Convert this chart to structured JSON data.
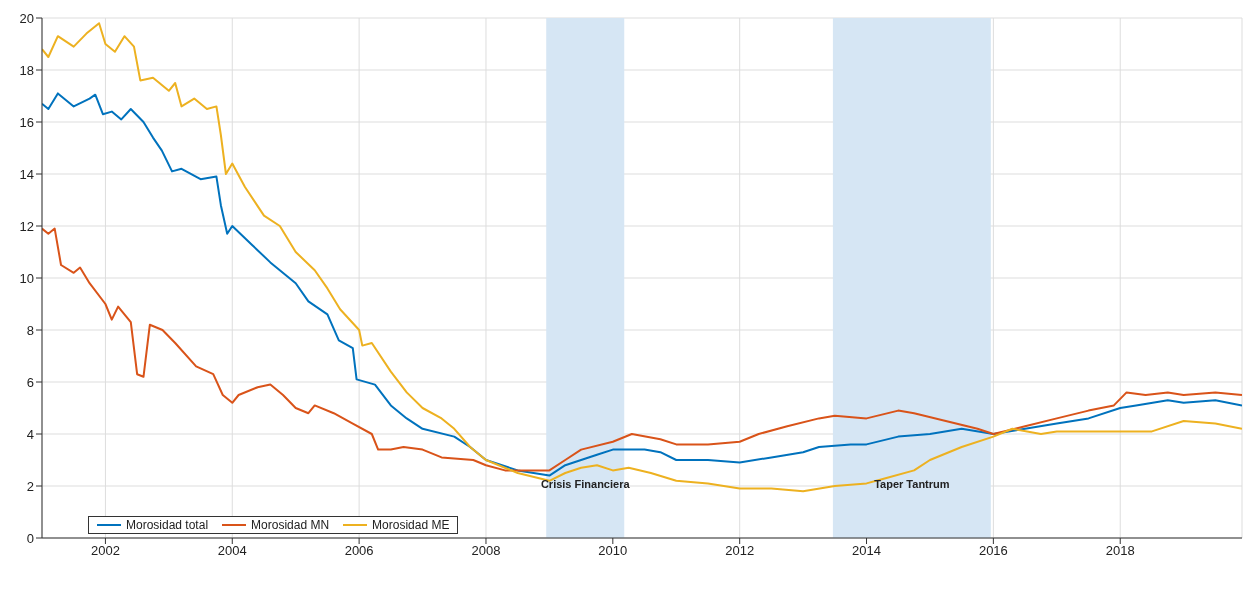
{
  "chart_data": {
    "type": "line",
    "xlim": [
      2001,
      2019.92
    ],
    "xticks": [
      2002,
      2004,
      2006,
      2008,
      2010,
      2012,
      2014,
      2016,
      2018
    ],
    "ylim": [
      0,
      20
    ],
    "yticks": [
      0,
      2,
      4,
      6,
      8,
      10,
      12,
      14,
      16,
      18,
      20
    ],
    "grid": true,
    "legend": "bottom left",
    "bands": [
      {
        "axis": "x",
        "from": 2008.95,
        "to": 2010.18,
        "label": "Crisis Financiera",
        "color": "#d6e6f4"
      },
      {
        "axis": "x",
        "from": 2013.47,
        "to": 2015.96,
        "label": "Taper Tantrum",
        "color": "#d6e6f4"
      }
    ],
    "series": [
      {
        "name": "Morosidad total",
        "color": "#0072bd",
        "x": [
          2001,
          2001.1,
          2001.25,
          2001.5,
          2001.75,
          2001.84,
          2001.96,
          2002.1,
          2002.25,
          2002.4,
          2002.6,
          2002.75,
          2002.89,
          2003.05,
          2003.2,
          2003.5,
          2003.75,
          2003.82,
          2003.92,
          2004,
          2004.3,
          2004.6,
          2005,
          2005.2,
          2005.5,
          2005.68,
          2005.9,
          2005.96,
          2006.25,
          2006.5,
          2006.75,
          2007,
          2007.5,
          2007.75,
          2008,
          2008.5,
          2009,
          2009.25,
          2009.5,
          2009.75,
          2010,
          2010.5,
          2010.75,
          2011,
          2011.5,
          2012,
          2012.5,
          2013,
          2013.25,
          2013.75,
          2014,
          2014.5,
          2015,
          2015.5,
          2016,
          2016.5,
          2017,
          2017.5,
          2018,
          2018.25,
          2018.75,
          2019,
          2019.5,
          2019.92
        ],
        "values": [
          16.7,
          16.5,
          17.1,
          16.6,
          16.9,
          17.05,
          16.3,
          16.4,
          16.1,
          16.5,
          16.0,
          15.4,
          14.9,
          14.1,
          14.2,
          13.8,
          13.9,
          12.8,
          11.7,
          12.0,
          11.3,
          10.6,
          9.8,
          9.1,
          8.6,
          7.6,
          7.3,
          6.1,
          5.9,
          5.1,
          4.6,
          4.2,
          3.9,
          3.5,
          3.0,
          2.6,
          2.4,
          2.8,
          3.0,
          3.2,
          3.4,
          3.4,
          3.3,
          3.0,
          3.0,
          2.9,
          3.1,
          3.3,
          3.5,
          3.6,
          3.6,
          3.9,
          4.0,
          4.2,
          4.0,
          4.2,
          4.4,
          4.6,
          5.0,
          5.1,
          5.3,
          5.2,
          5.3,
          5.1
        ]
      },
      {
        "name": "Morosidad MN",
        "color": "#d95319",
        "x": [
          2001,
          2001.1,
          2001.2,
          2001.3,
          2001.5,
          2001.6,
          2001.75,
          2002,
          2002.1,
          2002.2,
          2002.4,
          2002.5,
          2002.6,
          2002.7,
          2002.9,
          2003.1,
          2003.43,
          2003.7,
          2003.85,
          2004,
          2004.1,
          2004.4,
          2004.6,
          2004.8,
          2005,
          2005.2,
          2005.3,
          2005.6,
          2005.9,
          2006.2,
          2006.3,
          2006.5,
          2006.7,
          2007,
          2007.3,
          2007.8,
          2008,
          2008.3,
          2008.8,
          2009,
          2009.25,
          2009.5,
          2010,
          2010.3,
          2010.75,
          2011,
          2011.5,
          2012,
          2012.3,
          2012.75,
          2013.25,
          2013.5,
          2014,
          2014.5,
          2014.75,
          2015.25,
          2015.75,
          2016,
          2016.5,
          2017,
          2017.5,
          2017.9,
          2018.1,
          2018.4,
          2018.75,
          2019,
          2019.5,
          2019.92
        ],
        "values": [
          11.9,
          11.7,
          11.9,
          10.5,
          10.2,
          10.4,
          9.8,
          9.0,
          8.4,
          8.9,
          8.3,
          6.3,
          6.2,
          8.2,
          8.0,
          7.5,
          6.6,
          6.3,
          5.5,
          5.2,
          5.5,
          5.8,
          5.9,
          5.5,
          5.0,
          4.8,
          5.1,
          4.8,
          4.4,
          4.0,
          3.4,
          3.4,
          3.5,
          3.4,
          3.1,
          3.0,
          2.8,
          2.6,
          2.6,
          2.6,
          3.0,
          3.4,
          3.7,
          4.0,
          3.8,
          3.6,
          3.6,
          3.7,
          4.0,
          4.3,
          4.6,
          4.7,
          4.6,
          4.9,
          4.8,
          4.5,
          4.2,
          4.0,
          4.3,
          4.6,
          4.9,
          5.1,
          5.6,
          5.5,
          5.6,
          5.5,
          5.6,
          5.5
        ]
      },
      {
        "name": "Morosidad ME",
        "color": "#edb120",
        "x": [
          2001,
          2001.1,
          2001.25,
          2001.5,
          2001.7,
          2001.9,
          2002,
          2002.15,
          2002.3,
          2002.45,
          2002.55,
          2002.75,
          2003,
          2003.1,
          2003.2,
          2003.4,
          2003.6,
          2003.75,
          2003.82,
          2003.9,
          2004,
          2004.2,
          2004.5,
          2004.75,
          2005,
          2005.3,
          2005.5,
          2005.7,
          2006,
          2006.05,
          2006.2,
          2006.5,
          2006.75,
          2007,
          2007.3,
          2007.5,
          2007.75,
          2008,
          2008.5,
          2009,
          2009.25,
          2009.5,
          2009.75,
          2010,
          2010.25,
          2010.6,
          2011,
          2011.5,
          2012,
          2012.5,
          2013,
          2013.5,
          2014,
          2014.3,
          2014.75,
          2015,
          2015.5,
          2016,
          2016.3,
          2016.75,
          2017,
          2017.5,
          2018,
          2018.5,
          2019,
          2019.5,
          2019.92
        ],
        "values": [
          18.8,
          18.5,
          19.3,
          18.9,
          19.4,
          19.8,
          19.0,
          18.7,
          19.3,
          18.9,
          17.6,
          17.7,
          17.2,
          17.5,
          16.6,
          16.9,
          16.5,
          16.6,
          15.5,
          14.0,
          14.4,
          13.5,
          12.4,
          12.0,
          11.0,
          10.3,
          9.6,
          8.8,
          8.0,
          7.4,
          7.5,
          6.4,
          5.6,
          5.0,
          4.6,
          4.2,
          3.5,
          3.0,
          2.5,
          2.2,
          2.5,
          2.7,
          2.8,
          2.6,
          2.7,
          2.5,
          2.2,
          2.1,
          1.9,
          1.9,
          1.8,
          2.0,
          2.1,
          2.3,
          2.6,
          3.0,
          3.5,
          3.9,
          4.2,
          4.0,
          4.1,
          4.1,
          4.1,
          4.1,
          4.5,
          4.4,
          4.2
        ]
      }
    ]
  }
}
